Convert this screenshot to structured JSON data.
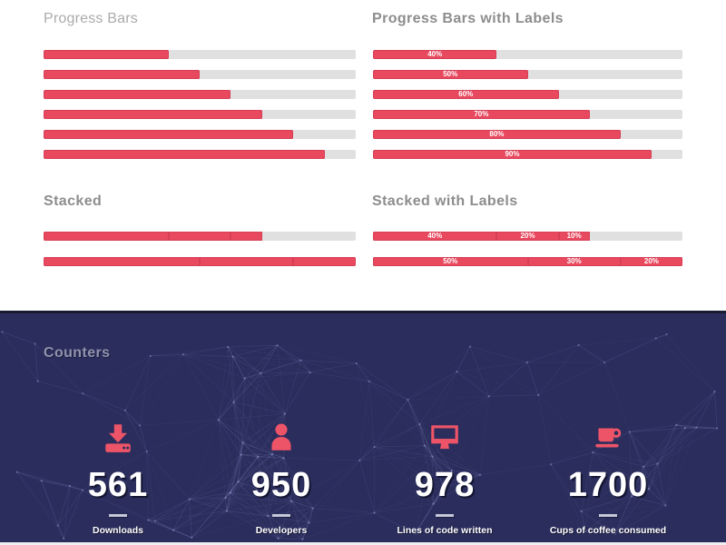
{
  "sections": {
    "progress_bars": {
      "title": "Progress Bars",
      "bars": [
        {
          "value": 40
        },
        {
          "value": 50
        },
        {
          "value": 60
        },
        {
          "value": 70
        },
        {
          "value": 80
        },
        {
          "value": 90
        }
      ]
    },
    "progress_bars_labeled": {
      "title": "Progress Bars with Labels",
      "bars": [
        {
          "value": 40,
          "label": "40%"
        },
        {
          "value": 50,
          "label": "50%"
        },
        {
          "value": 60,
          "label": "60%"
        },
        {
          "value": 70,
          "label": "70%"
        },
        {
          "value": 80,
          "label": "80%"
        },
        {
          "value": 90,
          "label": "90%"
        }
      ]
    },
    "stacked": {
      "title": "Stacked",
      "bars": [
        {
          "segments": [
            {
              "value": 40
            },
            {
              "value": 20
            },
            {
              "value": 10
            }
          ]
        },
        {
          "segments": [
            {
              "value": 50
            },
            {
              "value": 30
            },
            {
              "value": 20
            }
          ]
        }
      ]
    },
    "stacked_labeled": {
      "title": "Stacked with Labels",
      "bars": [
        {
          "segments": [
            {
              "value": 40,
              "label": "40%"
            },
            {
              "value": 20,
              "label": "20%"
            },
            {
              "value": 10,
              "label": "10%"
            }
          ]
        },
        {
          "segments": [
            {
              "value": 50,
              "label": "50%"
            },
            {
              "value": 30,
              "label": "30%"
            },
            {
              "value": 20,
              "label": "20%"
            }
          ]
        }
      ]
    },
    "counters": {
      "title": "Counters",
      "items": [
        {
          "icon": "download-icon",
          "value": "561",
          "label": "Downloads"
        },
        {
          "icon": "user-icon",
          "value": "950",
          "label": "Developers"
        },
        {
          "icon": "monitor-icon",
          "value": "978",
          "label": "Lines of code written"
        },
        {
          "icon": "coffee-icon",
          "value": "1700",
          "label": "Cups of coffee consumed"
        }
      ]
    }
  },
  "colors": {
    "accent": "#e8495f",
    "accent_border": "#d63f56",
    "track_gray": "#e0e0e0",
    "dark_background": "#2b2d5c",
    "heading_gray": "#8d8d8d",
    "heading_light_gray": "#ababab",
    "counters_heading": "#9093ab",
    "bar_label_text": "#ffffff",
    "counter_text": "#ffffff"
  }
}
